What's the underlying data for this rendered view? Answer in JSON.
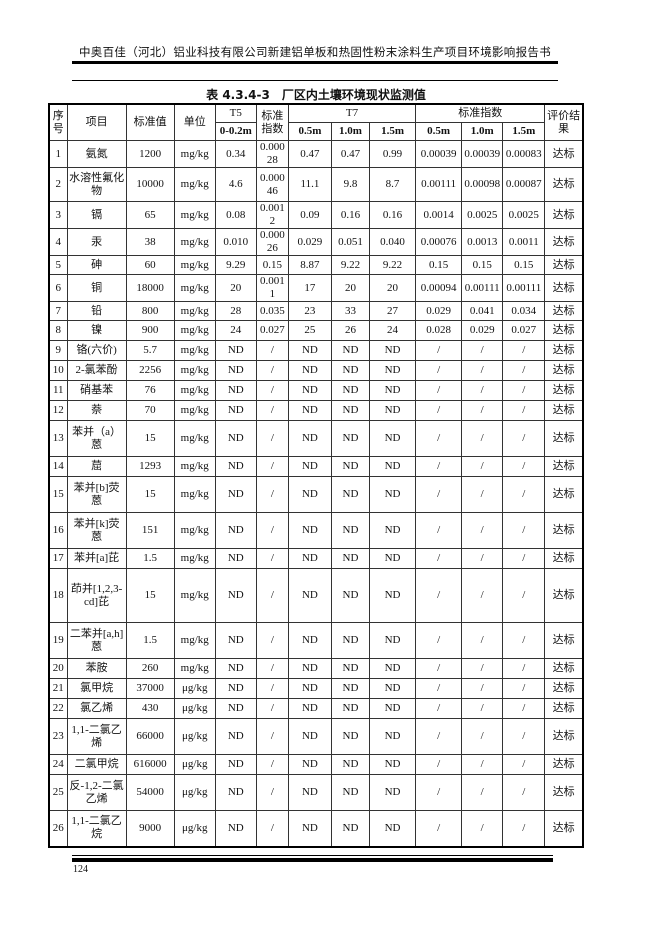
{
  "header": {
    "running_title": "中奥百佳（河北）铝业科技有限公司新建铝单板和热固性粉末涂料生产项目环境影响报告书"
  },
  "table": {
    "caption": "表 4.3.4-3　厂区内土壤环境现状监测值",
    "headers": {
      "seq": "序号",
      "item": "项目",
      "standard": "标准值",
      "unit": "单位",
      "t5": "T5",
      "t5_depth": "0-0.2m",
      "t5_index": "标准指数",
      "t7": "T7",
      "index": "标准指数",
      "result": "评价结果",
      "depths": [
        "0.5m",
        "1.0m",
        "1.5m"
      ]
    },
    "rows": [
      [
        "1",
        "氨氮",
        "1200",
        "mg/kg",
        "0.34",
        "0.00028",
        "0.47",
        "0.47",
        "0.99",
        "0.00039",
        "0.00039",
        "0.00083",
        "达标"
      ],
      [
        "2",
        "水溶性氟化物",
        "10000",
        "mg/kg",
        "4.6",
        "0.00046",
        "11.1",
        "9.8",
        "8.7",
        "0.00111",
        "0.00098",
        "0.00087",
        "达标"
      ],
      [
        "3",
        "镉",
        "65",
        "mg/kg",
        "0.08",
        "0.0012",
        "0.09",
        "0.16",
        "0.16",
        "0.0014",
        "0.0025",
        "0.0025",
        "达标"
      ],
      [
        "4",
        "汞",
        "38",
        "mg/kg",
        "0.010",
        "0.00026",
        "0.029",
        "0.051",
        "0.040",
        "0.00076",
        "0.0013",
        "0.0011",
        "达标"
      ],
      [
        "5",
        "砷",
        "60",
        "mg/kg",
        "9.29",
        "0.15",
        "8.87",
        "9.22",
        "9.22",
        "0.15",
        "0.15",
        "0.15",
        "达标"
      ],
      [
        "6",
        "铜",
        "18000",
        "mg/kg",
        "20",
        "0.0011",
        "17",
        "20",
        "20",
        "0.00094",
        "0.00111",
        "0.00111",
        "达标"
      ],
      [
        "7",
        "铅",
        "800",
        "mg/kg",
        "28",
        "0.035",
        "23",
        "33",
        "27",
        "0.029",
        "0.041",
        "0.034",
        "达标"
      ],
      [
        "8",
        "镍",
        "900",
        "mg/kg",
        "24",
        "0.027",
        "25",
        "26",
        "24",
        "0.028",
        "0.029",
        "0.027",
        "达标"
      ],
      [
        "9",
        "铬(六价)",
        "5.7",
        "mg/kg",
        "ND",
        "/",
        "ND",
        "ND",
        "ND",
        "/",
        "/",
        "/",
        "达标"
      ],
      [
        "10",
        "2-氯苯酚",
        "2256",
        "mg/kg",
        "ND",
        "/",
        "ND",
        "ND",
        "ND",
        "/",
        "/",
        "/",
        "达标"
      ],
      [
        "11",
        "硝基苯",
        "76",
        "mg/kg",
        "ND",
        "/",
        "ND",
        "ND",
        "ND",
        "/",
        "/",
        "/",
        "达标"
      ],
      [
        "12",
        "萘",
        "70",
        "mg/kg",
        "ND",
        "/",
        "ND",
        "ND",
        "ND",
        "/",
        "/",
        "/",
        "达标"
      ],
      [
        "13",
        "苯并（a）蒽",
        "15",
        "mg/kg",
        "ND",
        "/",
        "ND",
        "ND",
        "ND",
        "/",
        "/",
        "/",
        "达标"
      ],
      [
        "14",
        "䓛",
        "1293",
        "mg/kg",
        "ND",
        "/",
        "ND",
        "ND",
        "ND",
        "/",
        "/",
        "/",
        "达标"
      ],
      [
        "15",
        "苯并[b]荧蒽",
        "15",
        "mg/kg",
        "ND",
        "/",
        "ND",
        "ND",
        "ND",
        "/",
        "/",
        "/",
        "达标"
      ],
      [
        "16",
        "苯并[k]荧蒽",
        "151",
        "mg/kg",
        "ND",
        "/",
        "ND",
        "ND",
        "ND",
        "/",
        "/",
        "/",
        "达标"
      ],
      [
        "17",
        "苯并[a]芘",
        "1.5",
        "mg/kg",
        "ND",
        "/",
        "ND",
        "ND",
        "ND",
        "/",
        "/",
        "/",
        "达标"
      ],
      [
        "18",
        "茚并[1,2,3-cd]芘",
        "15",
        "mg/kg",
        "ND",
        "/",
        "ND",
        "ND",
        "ND",
        "/",
        "/",
        "/",
        "达标"
      ],
      [
        "19",
        "二苯并[a,h]蒽",
        "1.5",
        "mg/kg",
        "ND",
        "/",
        "ND",
        "ND",
        "ND",
        "/",
        "/",
        "/",
        "达标"
      ],
      [
        "20",
        "苯胺",
        "260",
        "mg/kg",
        "ND",
        "/",
        "ND",
        "ND",
        "ND",
        "/",
        "/",
        "/",
        "达标"
      ],
      [
        "21",
        "氯甲烷",
        "37000",
        "μg/kg",
        "ND",
        "/",
        "ND",
        "ND",
        "ND",
        "/",
        "/",
        "/",
        "达标"
      ],
      [
        "22",
        "氯乙烯",
        "430",
        "μg/kg",
        "ND",
        "/",
        "ND",
        "ND",
        "ND",
        "/",
        "/",
        "/",
        "达标"
      ],
      [
        "23",
        "1,1-二氯乙烯",
        "66000",
        "μg/kg",
        "ND",
        "/",
        "ND",
        "ND",
        "ND",
        "/",
        "/",
        "/",
        "达标"
      ],
      [
        "24",
        "二氯甲烷",
        "616000",
        "μg/kg",
        "ND",
        "/",
        "ND",
        "ND",
        "ND",
        "/",
        "/",
        "/",
        "达标"
      ],
      [
        "25",
        "反-1,2-二氯乙烯",
        "54000",
        "μg/kg",
        "ND",
        "/",
        "ND",
        "ND",
        "ND",
        "/",
        "/",
        "/",
        "达标"
      ],
      [
        "26",
        "1,1-二氯乙烷",
        "9000",
        "μg/kg",
        "ND",
        "/",
        "ND",
        "ND",
        "ND",
        "/",
        "/",
        "/",
        "达标"
      ]
    ]
  },
  "footer": {
    "page_number": "124"
  }
}
